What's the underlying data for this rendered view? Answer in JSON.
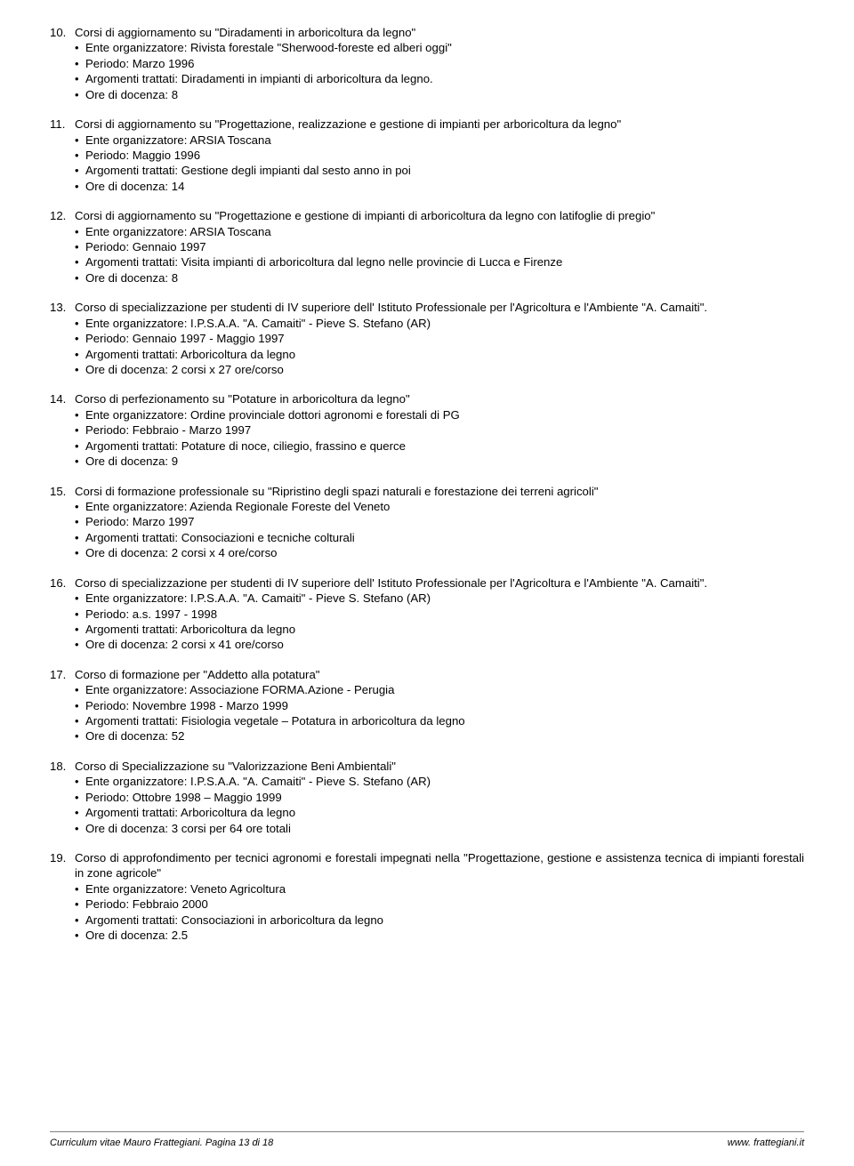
{
  "items": [
    {
      "num": "10.",
      "title": "Corsi di aggiornamento su \"Diradamenti in arboricoltura da legno\"",
      "bullets": [
        "Ente organizzatore: Rivista forestale \"Sherwood-foreste ed alberi oggi\"",
        "Periodo: Marzo 1996",
        "Argomenti trattati: Diradamenti in impianti di arboricoltura da legno.",
        "Ore di docenza: 8"
      ]
    },
    {
      "num": "11.",
      "title": "Corsi di aggiornamento su \"Progettazione, realizzazione e gestione di impianti per arboricoltura da legno\"",
      "bullets": [
        "Ente organizzatore: ARSIA Toscana",
        "Periodo: Maggio 1996",
        "Argomenti trattati: Gestione degli impianti dal sesto anno in poi",
        "Ore di docenza: 14"
      ]
    },
    {
      "num": "12.",
      "title": "Corsi di aggiornamento su \"Progettazione e gestione di impianti di arboricoltura da legno con latifoglie di pregio\"",
      "bullets": [
        "Ente organizzatore: ARSIA Toscana",
        "Periodo: Gennaio 1997",
        "Argomenti trattati: Visita impianti di arboricoltura dal legno nelle provincie di Lucca e Firenze",
        "Ore di docenza: 8"
      ]
    },
    {
      "num": "13.",
      "title": "Corso di specializzazione per studenti di IV superiore dell' Istituto Professionale per l'Agricoltura e l'Ambiente \"A. Camaiti\".",
      "bullets": [
        "Ente organizzatore: I.P.S.A.A. \"A. Camaiti\" - Pieve S. Stefano (AR)",
        "Periodo: Gennaio 1997 - Maggio 1997",
        "Argomenti trattati: Arboricoltura da legno",
        "Ore di docenza: 2 corsi x 27 ore/corso"
      ]
    },
    {
      "num": "14.",
      "title": "Corso di perfezionamento su \"Potature in arboricoltura da legno\"",
      "bullets": [
        "Ente organizzatore: Ordine provinciale dottori agronomi e forestali di PG",
        "Periodo: Febbraio - Marzo 1997",
        "Argomenti trattati: Potature di noce, ciliegio, frassino e querce",
        "Ore di docenza: 9"
      ]
    },
    {
      "num": "15.",
      "title": "Corsi di formazione professionale su \"Ripristino degli spazi naturali e forestazione dei terreni agricoli\"",
      "bullets": [
        "Ente organizzatore: Azienda Regionale Foreste del Veneto",
        "Periodo: Marzo 1997",
        "Argomenti trattati: Consociazioni e tecniche colturali",
        "Ore di docenza: 2 corsi x 4 ore/corso"
      ]
    },
    {
      "num": "16.",
      "title": "Corso di specializzazione per studenti di IV superiore dell' Istituto Professionale per l'Agricoltura e l'Ambiente \"A. Camaiti\".",
      "bullets": [
        "Ente organizzatore: I.P.S.A.A. \"A. Camaiti\" - Pieve S. Stefano (AR)",
        "Periodo: a.s. 1997 - 1998",
        "Argomenti trattati: Arboricoltura da legno",
        "Ore di docenza: 2 corsi x 41 ore/corso"
      ]
    },
    {
      "num": "17.",
      "title": "Corso di formazione per \"Addetto alla potatura\"",
      "bullets": [
        "Ente organizzatore: Associazione FORMA.Azione - Perugia",
        "Periodo: Novembre 1998 - Marzo 1999",
        "Argomenti trattati: Fisiologia vegetale – Potatura in arboricoltura da legno",
        "Ore di docenza: 52"
      ]
    },
    {
      "num": "18.",
      "title": "Corso di Specializzazione su \"Valorizzazione Beni Ambientali\"",
      "bullets": [
        "Ente organizzatore: I.P.S.A.A. \"A. Camaiti\" - Pieve S. Stefano (AR)",
        "Periodo: Ottobre 1998 – Maggio 1999",
        "Argomenti trattati: Arboricoltura da legno",
        "Ore di docenza: 3 corsi per 64 ore totali"
      ]
    },
    {
      "num": "19.",
      "title": "Corso di approfondimento per tecnici agronomi e forestali impegnati nella \"Progettazione, gestione e assistenza tecnica di impianti forestali in zone agricole\"",
      "bullets": [
        "Ente organizzatore: Veneto Agricoltura",
        "Periodo: Febbraio 2000",
        "Argomenti trattati: Consociazioni in arboricoltura da legno",
        "Ore di docenza: 2.5"
      ]
    }
  ],
  "footer": {
    "left": "Curriculum vitae Mauro Frattegiani. Pagina 13 di 18",
    "right": "www. frattegiani.it"
  }
}
